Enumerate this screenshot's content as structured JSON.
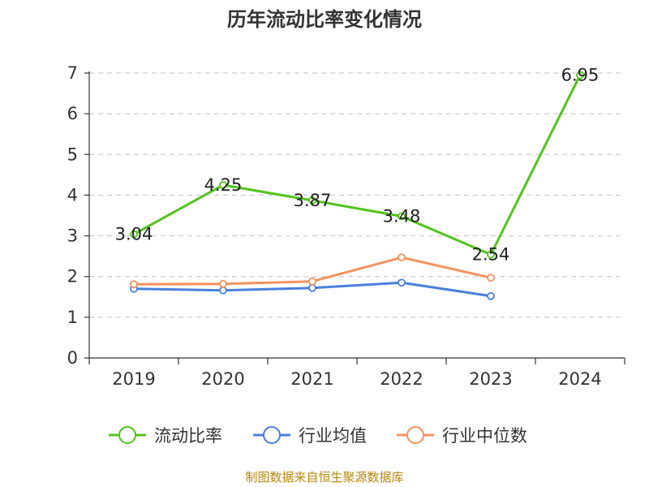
{
  "chart_data": {
    "type": "line",
    "title": "历年流动比率变化情况",
    "categories": [
      "2019",
      "2020",
      "2021",
      "2022",
      "2023",
      "2024"
    ],
    "ylim": [
      0,
      7
    ],
    "yticks": [
      "0",
      "1",
      "2",
      "3",
      "4",
      "5",
      "6",
      "7"
    ],
    "grid": true,
    "legend_position": "bottom",
    "series": [
      {
        "name": "流动比率",
        "color": "#52c41a",
        "values": [
          3.04,
          4.25,
          3.87,
          3.48,
          2.54,
          6.95
        ],
        "labels": [
          "3.04",
          "4.25",
          "3.87",
          "3.48",
          "2.54",
          "6.95"
        ]
      },
      {
        "name": "行业均值",
        "color": "#4a7fdc",
        "values": [
          1.7,
          1.66,
          1.72,
          1.85,
          1.52,
          null
        ]
      },
      {
        "name": "行业中位数",
        "color": "#f5925e",
        "values": [
          1.81,
          1.82,
          1.88,
          2.47,
          1.97,
          null
        ]
      }
    ]
  },
  "footer": {
    "source": "制图数据来自恒生聚源数据库"
  }
}
